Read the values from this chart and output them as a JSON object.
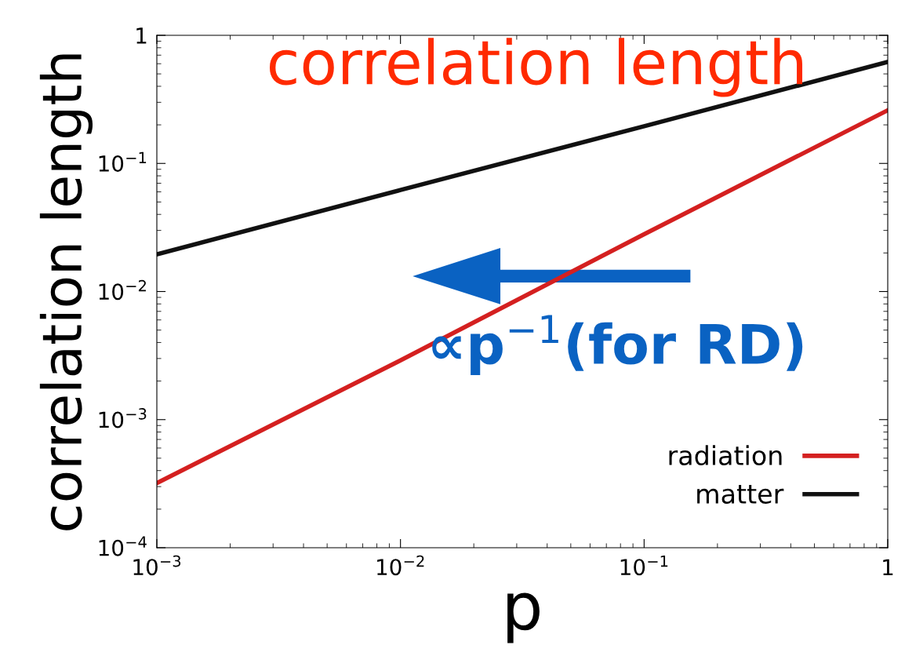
{
  "chart_data": {
    "type": "line",
    "title": "correlation length",
    "xlabel": "p",
    "ylabel": "correlation length",
    "log": "xy",
    "xlim": [
      0.001,
      1
    ],
    "ylim": [
      0.0001,
      1
    ],
    "xticks": [
      {
        "value": 0.001,
        "label": "10$^{−3}$"
      },
      {
        "value": 0.01,
        "label": "10$^{−2}$"
      },
      {
        "value": 0.1,
        "label": "10$^{−1}$"
      },
      1
    ],
    "yticks": [
      {
        "value": 0.0001,
        "label": "10$^{−4}$"
      },
      {
        "value": 0.001,
        "label": "10$^{−3}$"
      },
      {
        "value": 0.01,
        "label": "10$^{−2}$"
      },
      {
        "value": 0.1,
        "label": "10$^{−1}$"
      },
      1
    ],
    "x": [
      0.001,
      0.01,
      0.1,
      1
    ],
    "series": [
      {
        "name": "radiation",
        "color": "#d42020",
        "values": [
          0.00032,
          0.0029,
          0.028,
          0.26
        ]
      },
      {
        "name": "matter",
        "color": "#111111",
        "values": [
          0.0195,
          0.062,
          0.195,
          0.62
        ]
      }
    ],
    "annotations": [
      "∝p$^{−1}$(for RD)"
    ],
    "legend": "bottom right",
    "grid": false
  }
}
